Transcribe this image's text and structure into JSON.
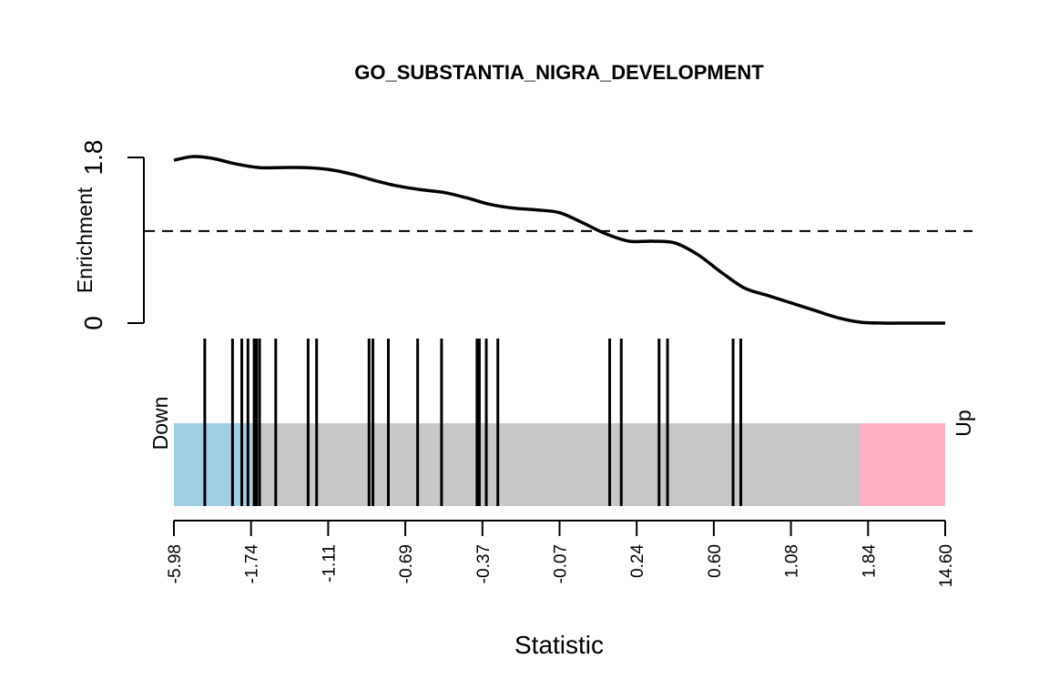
{
  "chart_data": {
    "type": "barcode",
    "title": "GO_SUBSTANTIA_NIGRA_DEVELOPMENT",
    "xlabel": "Statistic",
    "ylabel": "Enrichment",
    "y_ticks": [
      "0",
      "1.8"
    ],
    "y_range": [
      0,
      1.8
    ],
    "x_tick_labels": [
      "-5.98",
      "-1.74",
      "-1.11",
      "-0.69",
      "-0.37",
      "-0.07",
      "0.24",
      "0.60",
      "1.08",
      "1.84",
      "14.60"
    ],
    "x_range": [
      0,
      1
    ],
    "down_label": "Down",
    "up_label": "Up",
    "down_region": [
      0,
      0.1
    ],
    "up_region": [
      0.89,
      1
    ],
    "baseline": 1.0,
    "enrichment_curve": {
      "x": [
        0.0,
        0.025,
        0.05,
        0.08,
        0.11,
        0.14,
        0.17,
        0.2,
        0.23,
        0.26,
        0.29,
        0.32,
        0.35,
        0.38,
        0.41,
        0.44,
        0.47,
        0.5,
        0.53,
        0.56,
        0.59,
        0.62,
        0.65,
        0.68,
        0.71,
        0.74,
        0.77,
        0.8,
        0.83,
        0.86,
        0.89,
        0.92,
        0.95,
        0.98,
        1.0
      ],
      "y": [
        1.77,
        1.81,
        1.79,
        1.73,
        1.69,
        1.69,
        1.69,
        1.67,
        1.62,
        1.55,
        1.49,
        1.45,
        1.42,
        1.36,
        1.29,
        1.25,
        1.23,
        1.2,
        1.09,
        0.97,
        0.89,
        0.89,
        0.87,
        0.74,
        0.55,
        0.38,
        0.3,
        0.22,
        0.14,
        0.06,
        0.01,
        0.0,
        0.0,
        0.0,
        0.0
      ]
    },
    "barcode_positions": [
      0.04,
      0.076,
      0.088,
      0.096,
      0.104,
      0.107,
      0.111,
      0.132,
      0.174,
      0.185,
      0.253,
      0.258,
      0.278,
      0.316,
      0.347,
      0.393,
      0.396,
      0.405,
      0.42,
      0.565,
      0.58,
      0.629,
      0.64,
      0.725,
      0.735
    ],
    "colors": {
      "down": "#a1d0e4",
      "up": "#ffb0c3",
      "middle": "#c8c8c8",
      "line": "#000000"
    }
  }
}
